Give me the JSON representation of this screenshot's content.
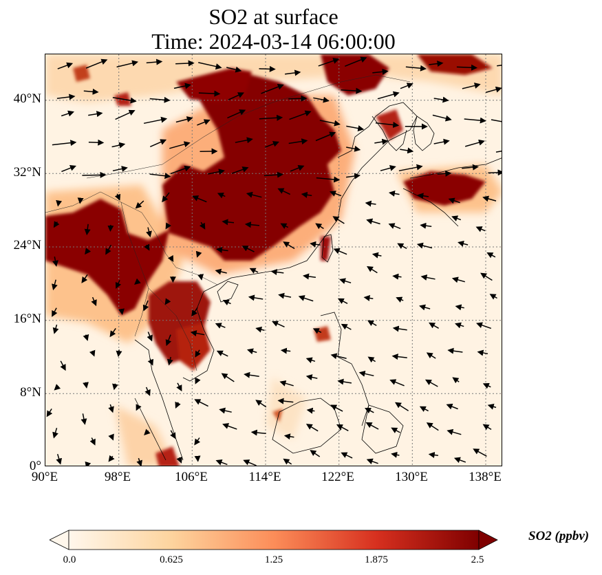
{
  "title": {
    "line1": "SO2 at surface",
    "line2": "Time: 2024-03-14 06:00:00"
  },
  "map": {
    "region": "East and Southeast Asia",
    "variable": "SO2",
    "level": "surface",
    "grid_lines": "dotted",
    "overlay": "wind vectors (arrows)",
    "lon_range": [
      90,
      140
    ],
    "lat_range": [
      0,
      45
    ],
    "lat_labels": [
      "40°N",
      "32°N",
      "24°N",
      "16°N",
      "8°N",
      "0°"
    ],
    "lon_labels": [
      "90°E",
      "98°E",
      "106°E",
      "114°E",
      "122°E",
      "130°E",
      "138°E"
    ]
  },
  "colorbar": {
    "label": "SO2 (ppbv)",
    "ticks": [
      "0.0",
      "0.625",
      "1.25",
      "1.875",
      "2.5"
    ],
    "extend": "both",
    "colormap": "OrRd",
    "colors": [
      "#fff7ec",
      "#fdd49e",
      "#fc8d59",
      "#d7301f",
      "#7f0000"
    ]
  }
}
